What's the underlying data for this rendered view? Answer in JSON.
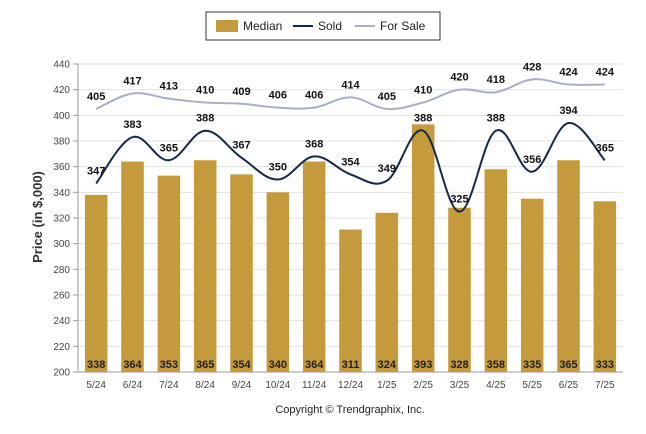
{
  "chart_data": {
    "type": "bar",
    "categories": [
      "5/24",
      "6/24",
      "7/24",
      "8/24",
      "9/24",
      "10/24",
      "11/24",
      "12/24",
      "1/25",
      "2/25",
      "3/25",
      "4/25",
      "5/25",
      "6/25",
      "7/25"
    ],
    "series": [
      {
        "name": "Median",
        "kind": "bar",
        "values": [
          338,
          364,
          353,
          365,
          354,
          340,
          364,
          311,
          324,
          393,
          328,
          358,
          335,
          365,
          333
        ]
      },
      {
        "name": "Sold",
        "kind": "line",
        "values": [
          347,
          383,
          365,
          388,
          367,
          350,
          368,
          354,
          349,
          388,
          325,
          388,
          356,
          394,
          365
        ]
      },
      {
        "name": "For Sale",
        "kind": "line",
        "values": [
          405,
          417,
          413,
          410,
          409,
          406,
          406,
          414,
          405,
          410,
          420,
          418,
          428,
          424,
          424
        ]
      }
    ],
    "ylabel": "Price (in $,000)",
    "xlabel": "",
    "ylim": [
      200,
      440
    ],
    "yticks": [
      200,
      220,
      240,
      260,
      280,
      300,
      320,
      340,
      360,
      380,
      400,
      420,
      440
    ],
    "grid": true,
    "legend_position": "top-center",
    "colors": {
      "Median": "#c49a3c",
      "Sold": "#14284a",
      "For Sale": "#a9b0c4"
    }
  },
  "footer": {
    "copyright": "Copyright © Trendgraphix, Inc."
  }
}
